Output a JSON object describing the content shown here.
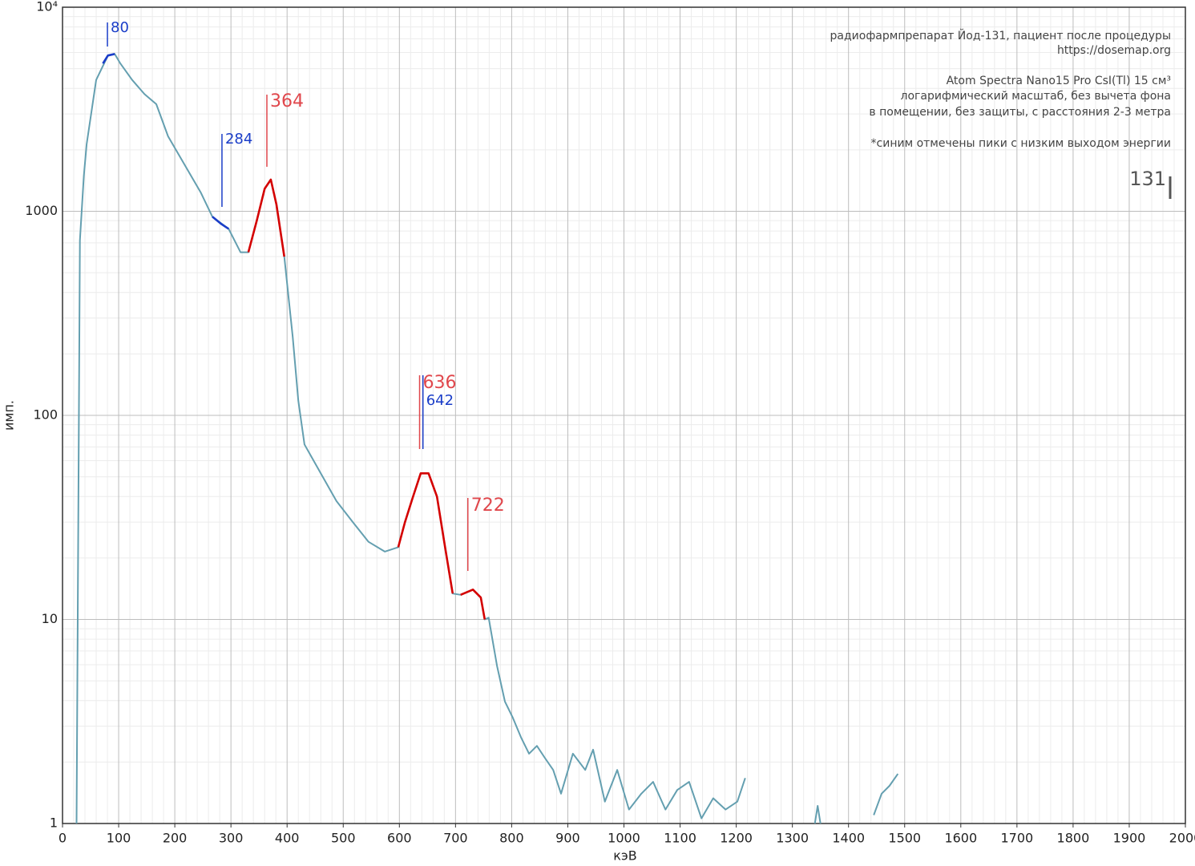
{
  "chart_data": {
    "type": "line",
    "notes": [
      "радиофармпрепарат Йод-131, пациент после процедуры",
      "https://dosemap.org",
      "Atom Spectra Nano15 Pro CsI(Tl) 15 см³",
      "логарифмический масштаб, без вычета фона",
      "в помещении, без защиты, с расстояния 2-3 метра",
      "*синим отмечены пики с низким выходом энергии"
    ],
    "badge": "131",
    "x_label": "кэВ",
    "y_label": "имп.",
    "xlim": [
      0,
      2000
    ],
    "ylim": [
      1,
      10000
    ],
    "log_y": true,
    "grid": true,
    "xticks": [
      0,
      100,
      200,
      300,
      400,
      500,
      600,
      700,
      800,
      900,
      1000,
      1100,
      1200,
      1300,
      1400,
      1500,
      1600,
      1700,
      1800,
      1900,
      2000
    ],
    "yticks": [
      1,
      10,
      100,
      1000,
      {
        "value": 10000,
        "label": "10⁴"
      }
    ],
    "series": [
      {
        "color": "#649fb0",
        "x": [
          25,
          31,
          38,
          43,
          60,
          81,
          93,
          103,
          124,
          146,
          167,
          188,
          217,
          246,
          267,
          296,
          317,
          331,
          346,
          360,
          371,
          381,
          395,
          410,
          420,
          431,
          460,
          488,
          517,
          545,
          574,
          598,
          610,
          624,
          638,
          652,
          667,
          681,
          695,
          709,
          731,
          745,
          752,
          759,
          774,
          788,
          802,
          817,
          831,
          845,
          859,
          874,
          888,
          909,
          931,
          945,
          966,
          988,
          1009,
          1031,
          1052,
          1074,
          1095,
          1116,
          1138,
          1159,
          1181,
          1202,
          1216,
          1231,
          1340,
          1345,
          1350,
          1440,
          1445,
          1459,
          1473,
          1488,
          1495
        ],
        "values": [
          1,
          720,
          1490,
          2130,
          4400,
          5800,
          5900,
          5300,
          4400,
          3750,
          3350,
          2330,
          1700,
          1240,
          940,
          820,
          630,
          630,
          900,
          1290,
          1430,
          1080,
          600,
          243,
          118,
          72,
          52,
          38,
          30,
          24,
          21.5,
          22.6,
          30,
          39.7,
          52,
          52,
          40,
          23,
          13.4,
          13.2,
          14,
          12.8,
          10,
          10.2,
          5.9,
          3.96,
          3.3,
          2.63,
          2.2,
          2.4,
          2.1,
          1.83,
          1.4,
          2.2,
          1.83,
          2.3,
          1.28,
          1.83,
          1.17,
          1.4,
          1.6,
          1.17,
          1.46,
          1.6,
          1.06,
          1.33,
          1.17,
          1.28,
          1.67,
          null,
          1,
          1.22,
          1,
          null,
          1.1,
          1.4,
          1.53,
          1.75,
          null
        ]
      },
      {
        "color": "#1a3dc8",
        "x": [
          72,
          81,
          93
        ],
        "values": [
          5300,
          5800,
          5900
        ]
      },
      {
        "color": "#1a3dc8",
        "x": [
          267,
          282,
          296
        ],
        "values": [
          940,
          870,
          820
        ]
      },
      {
        "color": "#d40000",
        "x": [
          331,
          346,
          360,
          371,
          381,
          395
        ],
        "values": [
          630,
          900,
          1290,
          1430,
          1080,
          600
        ]
      },
      {
        "color": "#d40000",
        "x": [
          598,
          610,
          624,
          638,
          652,
          667,
          681,
          695
        ],
        "values": [
          22.6,
          30,
          39.7,
          52,
          52,
          40,
          23,
          13.4
        ]
      },
      {
        "color": "#d40000",
        "x": [
          709,
          731,
          745,
          752
        ],
        "values": [
          13.2,
          14,
          12.8,
          10
        ]
      }
    ],
    "peaks": [
      {
        "x": 80,
        "color": "#1a3dc8"
      },
      {
        "x": 284,
        "color": "#1a3dc8"
      },
      {
        "x": 364,
        "color": "#e0474c"
      },
      {
        "x": 636,
        "color": "#e0474c"
      },
      {
        "x": 642,
        "color": "#1a3dc8"
      },
      {
        "x": 722,
        "color": "#e0474c"
      }
    ]
  }
}
